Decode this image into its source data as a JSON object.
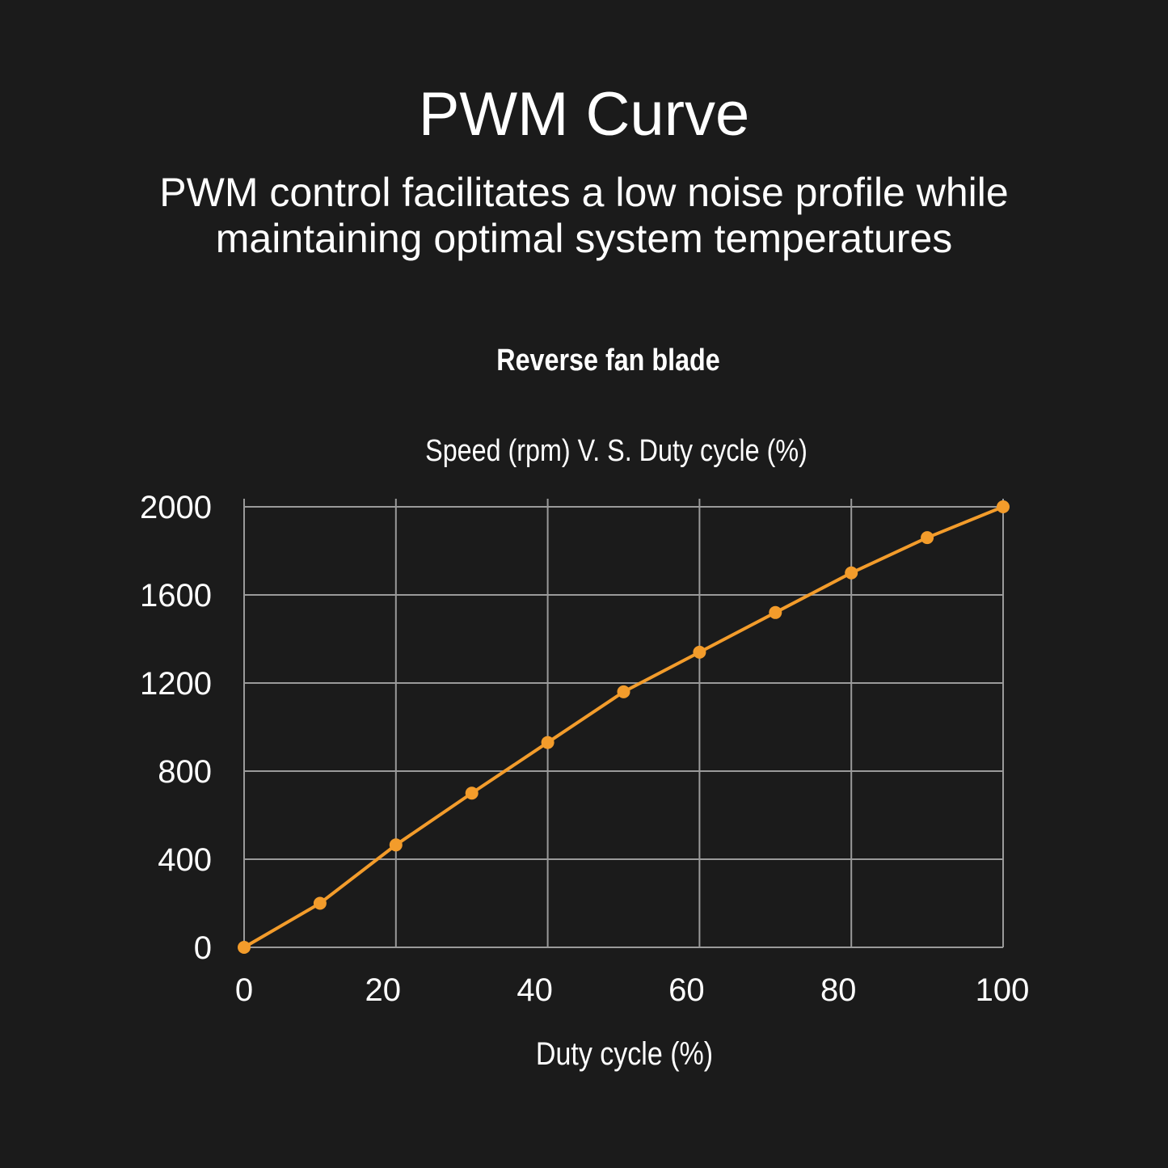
{
  "header": {
    "title": "PWM Curve",
    "subtitle_line1": "PWM control facilitates a low noise profile while",
    "subtitle_line2": "maintaining optimal system temperatures"
  },
  "chart_data": {
    "type": "line",
    "title": "Reverse fan blade",
    "subtitle": "Speed (rpm) V. S. Duty cycle (%)",
    "xlabel": "Duty cycle (%)",
    "ylabel": "",
    "x": [
      0,
      10,
      20,
      30,
      40,
      50,
      60,
      70,
      80,
      90,
      100
    ],
    "series": [
      {
        "values": [
          0,
          200,
          465,
          700,
          930,
          1160,
          1340,
          1520,
          1700,
          1860,
          2000
        ],
        "color": "#f39c2b"
      }
    ],
    "xlim": [
      0,
      100
    ],
    "ylim": [
      0,
      2000
    ],
    "xticks": [
      0,
      20,
      40,
      60,
      80,
      100
    ],
    "yticks": [
      0,
      400,
      800,
      1200,
      1600,
      2000
    ],
    "grid": true
  }
}
